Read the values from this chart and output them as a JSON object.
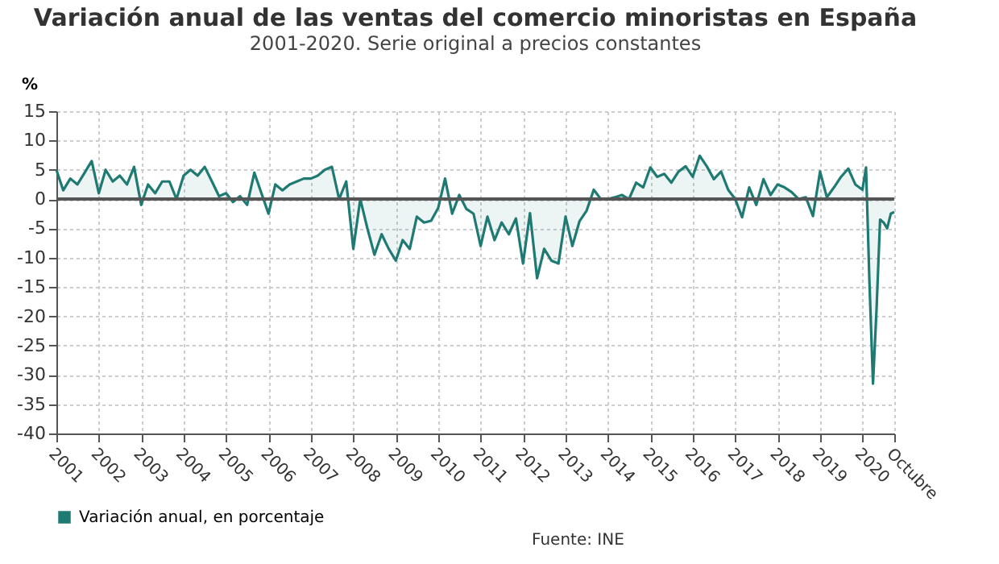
{
  "chart_data": {
    "type": "area",
    "title": "Variación anual de las ventas del comercio minoristas en España",
    "subtitle": "2001-2020. Serie original a precios constantes",
    "ylabel": "%",
    "annotations": [
      "Fuente: INE"
    ],
    "x": [
      "2001-01",
      "2001-03",
      "2001-05",
      "2001-07",
      "2001-09",
      "2001-11",
      "2002-01",
      "2002-03",
      "2002-05",
      "2002-07",
      "2002-09",
      "2002-11",
      "2003-01",
      "2003-03",
      "2003-05",
      "2003-07",
      "2003-09",
      "2003-11",
      "2004-01",
      "2004-03",
      "2004-05",
      "2004-07",
      "2004-09",
      "2004-11",
      "2005-01",
      "2005-03",
      "2005-05",
      "2005-07",
      "2005-09",
      "2005-11",
      "2006-01",
      "2006-03",
      "2006-05",
      "2006-07",
      "2006-09",
      "2006-11",
      "2007-01",
      "2007-03",
      "2007-05",
      "2007-07",
      "2007-09",
      "2007-11",
      "2008-01",
      "2008-03",
      "2008-05",
      "2008-07",
      "2008-09",
      "2008-11",
      "2009-01",
      "2009-03",
      "2009-05",
      "2009-07",
      "2009-09",
      "2009-11",
      "2010-01",
      "2010-03",
      "2010-05",
      "2010-07",
      "2010-09",
      "2010-11",
      "2011-01",
      "2011-03",
      "2011-05",
      "2011-07",
      "2011-09",
      "2011-11",
      "2012-01",
      "2012-03",
      "2012-05",
      "2012-07",
      "2012-09",
      "2012-11",
      "2013-01",
      "2013-03",
      "2013-05",
      "2013-07",
      "2013-09",
      "2013-11",
      "2014-01",
      "2014-03",
      "2014-05",
      "2014-07",
      "2014-09",
      "2014-11",
      "2015-01",
      "2015-03",
      "2015-05",
      "2015-07",
      "2015-09",
      "2015-11",
      "2016-01",
      "2016-03",
      "2016-05",
      "2016-07",
      "2016-09",
      "2016-11",
      "2017-01",
      "2017-03",
      "2017-05",
      "2017-07",
      "2017-09",
      "2017-11",
      "2018-01",
      "2018-03",
      "2018-05",
      "2018-07",
      "2018-09",
      "2018-11",
      "2019-01",
      "2019-03",
      "2019-05",
      "2019-07",
      "2019-09",
      "2019-11",
      "2020-01",
      "2020-02",
      "2020-03",
      "2020-04",
      "2020-05",
      "2020-06",
      "2020-07",
      "2020-08",
      "2020-09",
      "2020-10"
    ],
    "series": [
      {
        "name": "Variación anual, en porcentaje",
        "color": "#1f7a73",
        "values": [
          5,
          1.5,
          3.5,
          2.5,
          4.5,
          6.5,
          1,
          5,
          3,
          4,
          2.5,
          5.5,
          -1,
          2.5,
          1,
          3,
          3,
          0,
          4,
          5,
          4,
          5.5,
          3,
          0.5,
          1,
          -0.5,
          0.5,
          -1,
          4.5,
          1,
          -2.5,
          2.5,
          1.5,
          2.5,
          3,
          3.5,
          3.5,
          4,
          5,
          5.5,
          0,
          3,
          -8.5,
          0,
          -5,
          -9.5,
          -6,
          -8.5,
          -10.5,
          -7,
          -8.5,
          -3,
          -4,
          -3.7,
          -1.5,
          3.5,
          -2.5,
          0.7,
          -1.7,
          -2.5,
          -8,
          -3,
          -7,
          -4,
          -6,
          -3.3,
          -11,
          -2.4,
          -13.5,
          -8.5,
          -10.5,
          -11,
          -3,
          -8,
          -3.8,
          -2,
          1.6,
          0,
          0,
          0.3,
          0.7,
          0,
          2.8,
          2,
          5.4,
          3.8,
          4.3,
          2.8,
          4.7,
          5.6,
          3.8,
          7.4,
          5.6,
          3.4,
          4.7,
          1.6,
          0,
          -3.1,
          2,
          -1,
          3.4,
          0.7,
          2.5,
          2,
          1.2,
          0,
          0.3,
          -2.9,
          4.7,
          0.3,
          2,
          3.8,
          5.2,
          2.5,
          1.6,
          5.4,
          -14,
          -31.5,
          -19,
          -3.5,
          -4,
          -5,
          -2.5,
          -2.2
        ]
      }
    ],
    "xlim": [
      "2001-01",
      "2020-10"
    ],
    "xticks": [
      {
        "value": "2001-01",
        "label": "2001"
      },
      {
        "value": "2002-01",
        "label": "2002"
      },
      {
        "value": "2003-01",
        "label": "2003"
      },
      {
        "value": "2004-01",
        "label": "2004"
      },
      {
        "value": "2005-01",
        "label": "2005"
      },
      {
        "value": "2006-01",
        "label": "2006"
      },
      {
        "value": "2007-01",
        "label": "2007"
      },
      {
        "value": "2008-01",
        "label": "2008"
      },
      {
        "value": "2009-01",
        "label": "2009"
      },
      {
        "value": "2010-01",
        "label": "2010"
      },
      {
        "value": "2011-01",
        "label": "2011"
      },
      {
        "value": "2012-01",
        "label": "2012"
      },
      {
        "value": "2013-01",
        "label": "2013"
      },
      {
        "value": "2014-01",
        "label": "2014"
      },
      {
        "value": "2015-01",
        "label": "2015"
      },
      {
        "value": "2016-01",
        "label": "2016"
      },
      {
        "value": "2017-01",
        "label": "2017"
      },
      {
        "value": "2018-01",
        "label": "2018"
      },
      {
        "value": "2019-01",
        "label": "2019"
      },
      {
        "value": "2020-01",
        "label": "2020"
      },
      {
        "value": "2020-10",
        "label": "Octubre"
      }
    ],
    "ylim": [
      -40,
      15
    ],
    "yticks": [
      -40,
      -35,
      -30,
      -25,
      -20,
      -15,
      -10,
      -5,
      0,
      5,
      10,
      15
    ],
    "ref_lines": [
      {
        "axis": "y",
        "value": 0,
        "color": "#555555"
      }
    ],
    "grid": true,
    "legend": "bottom"
  }
}
